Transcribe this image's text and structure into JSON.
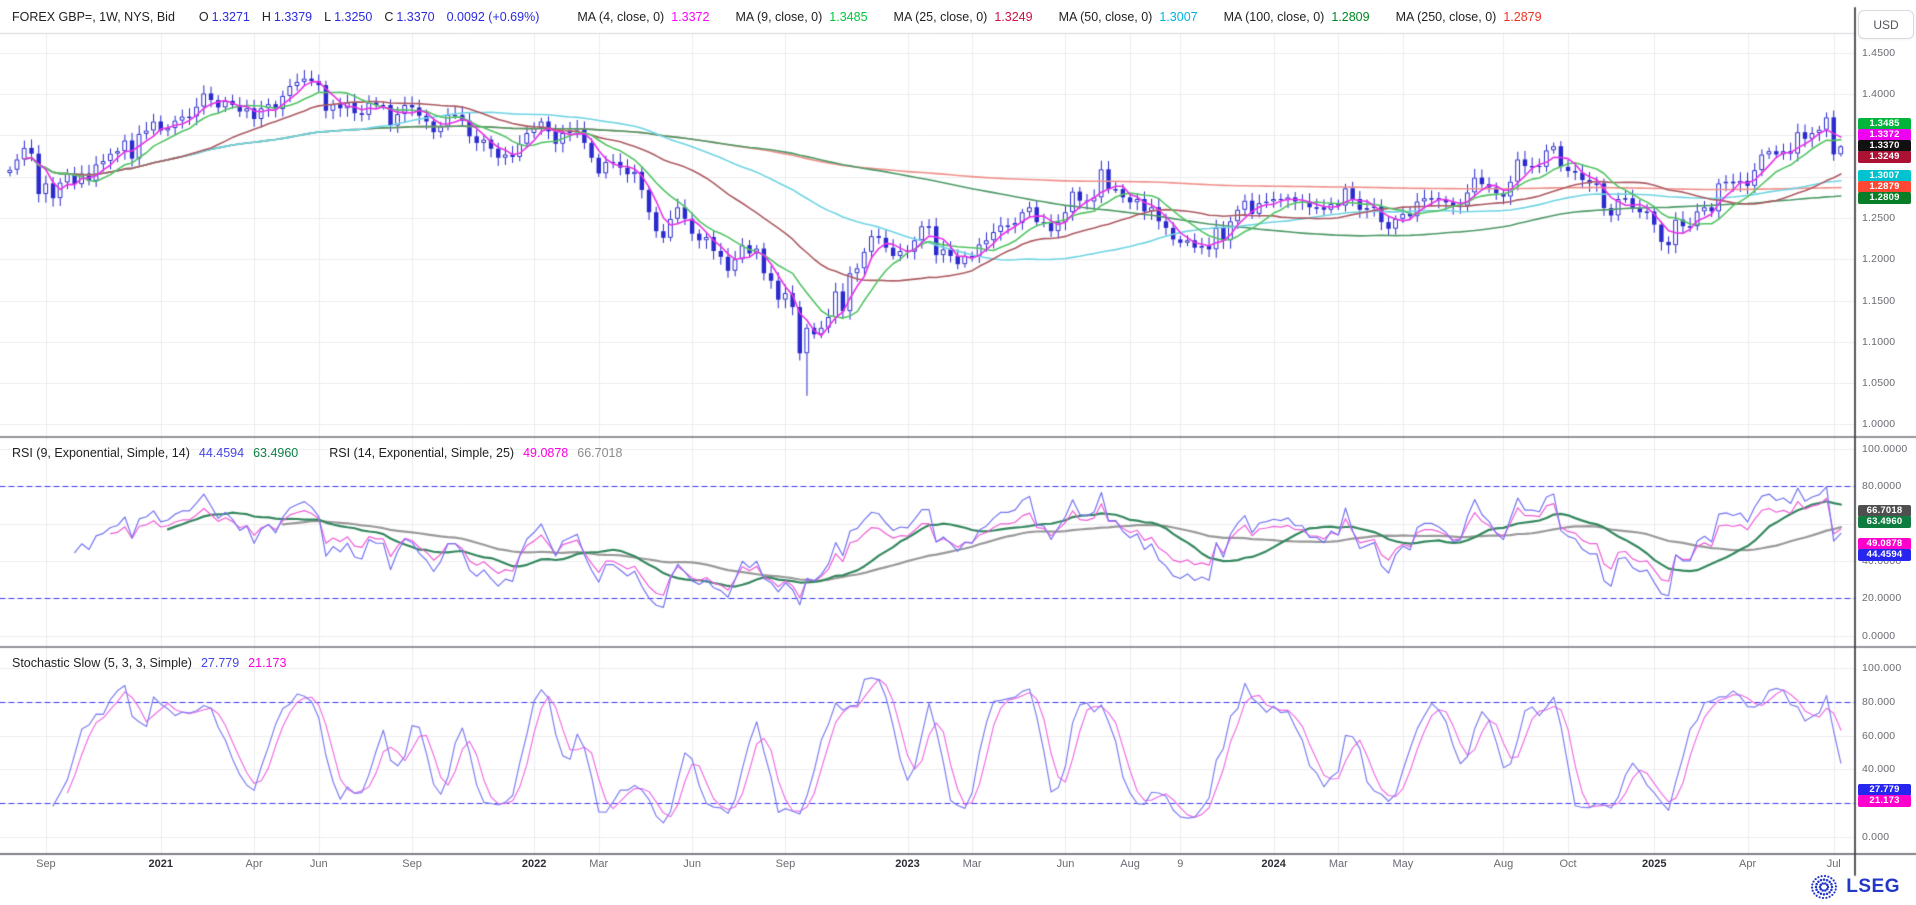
{
  "header": {
    "instrument": "FOREX GBP=, 1W, NYS, Bid",
    "ohlc": [
      {
        "k": "O",
        "v": "1.3271"
      },
      {
        "k": "H",
        "v": "1.3379"
      },
      {
        "k": "L",
        "v": "1.3250"
      },
      {
        "k": "C",
        "v": "1.3370"
      },
      {
        "k": "",
        "v": "0.0092 (+0.69%)"
      }
    ],
    "ma_legend": [
      {
        "label": "MA (4, close, 0)",
        "value": "1.3372",
        "color": "#ff00ff"
      },
      {
        "label": "MA (9, close, 0)",
        "value": "1.3485",
        "color": "#00c93c"
      },
      {
        "label": "MA (25, close, 0)",
        "value": "1.3249",
        "color": "#cc1144"
      },
      {
        "label": "MA (50, close, 0)",
        "value": "1.3007",
        "color": "#00b5e0"
      },
      {
        "label": "MA (100, close, 0)",
        "value": "1.2809",
        "color": "#008822"
      },
      {
        "label": "MA (250, close, 0)",
        "value": "1.2879",
        "color": "#ee3322"
      }
    ],
    "currency_button": "USD"
  },
  "main_panel": {
    "y_axis_labels": [
      {
        "text": "1.4500",
        "value": 1.45
      },
      {
        "text": "1.4000",
        "value": 1.4
      },
      {
        "text": "1.3500",
        "value": 1.35
      },
      {
        "text": "1.3000",
        "value": 1.3
      },
      {
        "text": "1.2500",
        "value": 1.25
      },
      {
        "text": "1.2000",
        "value": 1.2
      },
      {
        "text": "1.1500",
        "value": 1.15
      },
      {
        "text": "1.1000",
        "value": 1.1
      },
      {
        "text": "1.0500",
        "value": 1.05
      },
      {
        "text": "1.0000",
        "value": 1.0
      }
    ],
    "price_labels": [
      {
        "text": "1.3485",
        "value": 1.3485,
        "bg": "#00b53a"
      },
      {
        "text": "1.3372",
        "value": 1.3372,
        "bg": "#f000f0"
      },
      {
        "text": "1.3370",
        "value": 1.337,
        "bg": "#111111",
        "current": true
      },
      {
        "text": "1.3249",
        "value": 1.3249,
        "bg": "#aa1133"
      },
      {
        "text": "1.3007",
        "value": 1.3007,
        "bg": "#00c3cf"
      },
      {
        "text": "1.2879",
        "value": 1.2879,
        "bg": "#ff4733"
      },
      {
        "text": "1.2809",
        "value": 1.2809,
        "bg": "#0a7d28"
      }
    ]
  },
  "rsi_panel": {
    "legend": [
      {
        "label": "RSI (9, Exponential, Simple, 14)",
        "values": [
          {
            "text": "44.4594",
            "color": "#4646e8"
          },
          {
            "text": "63.4960",
            "color": "#0e8048"
          }
        ]
      },
      {
        "label": "RSI (14, Exponential, Simple, 25)",
        "values": [
          {
            "text": "49.0878",
            "color": "#ff00e0"
          },
          {
            "text": "66.7018",
            "color": "#8c8c8c"
          }
        ]
      }
    ],
    "y_axis_labels": [
      {
        "text": "100.0000",
        "value": 100
      },
      {
        "text": "80.0000",
        "value": 80
      },
      {
        "text": "60.0000",
        "value": 60
      },
      {
        "text": "40.0000",
        "value": 40
      },
      {
        "text": "20.0000",
        "value": 20
      },
      {
        "text": "0.0000",
        "value": 0
      }
    ],
    "value_labels": [
      {
        "text": "66.7018",
        "value": 66.7018,
        "bg": "#4f4f4f"
      },
      {
        "text": "63.4960",
        "value": 63.496,
        "bg": "#0e7d3f"
      },
      {
        "text": "49.0878",
        "value": 49.0878,
        "bg": "#ff00cc"
      },
      {
        "text": "44.4594",
        "value": 44.4594,
        "bg": "#2626ee"
      }
    ]
  },
  "stoch_panel": {
    "legend": [
      {
        "label": "Stochastic Slow (5, 3, 3, Simple)",
        "values": [
          {
            "text": "27.779",
            "color": "#4646e8"
          },
          {
            "text": "21.173",
            "color": "#ff00e0"
          }
        ]
      }
    ],
    "y_axis_labels": [
      {
        "text": "100.000",
        "value": 100
      },
      {
        "text": "80.000",
        "value": 80
      },
      {
        "text": "60.000",
        "value": 60
      },
      {
        "text": "40.000",
        "value": 40
      },
      {
        "text": "20.000",
        "value": 20
      },
      {
        "text": "0.000",
        "value": 0
      }
    ],
    "value_labels": [
      {
        "text": "27.779",
        "value": 27.779,
        "bg": "#2626ee"
      },
      {
        "text": "21.173",
        "value": 21.173,
        "bg": "#ff00cc"
      }
    ]
  },
  "x_axis": {
    "ticks": [
      {
        "label": "Sep",
        "week": 5,
        "bold": false
      },
      {
        "label": "2021",
        "week": 21,
        "bold": true
      },
      {
        "label": "Apr",
        "week": 34,
        "bold": false
      },
      {
        "label": "Jun",
        "week": 43,
        "bold": false
      },
      {
        "label": "Sep",
        "week": 56,
        "bold": false
      },
      {
        "label": "2022",
        "week": 73,
        "bold": true
      },
      {
        "label": "Mar",
        "week": 82,
        "bold": false
      },
      {
        "label": "Jun",
        "week": 95,
        "bold": false
      },
      {
        "label": "Sep",
        "week": 108,
        "bold": false
      },
      {
        "label": "2023",
        "week": 125,
        "bold": true
      },
      {
        "label": "Mar",
        "week": 134,
        "bold": false
      },
      {
        "label": "Jun",
        "week": 147,
        "bold": false
      },
      {
        "label": "Aug",
        "week": 156,
        "bold": false
      },
      {
        "label": "9",
        "week": 163,
        "bold": false
      },
      {
        "label": "2024",
        "week": 176,
        "bold": true
      },
      {
        "label": "Mar",
        "week": 185,
        "bold": false
      },
      {
        "label": "May",
        "week": 194,
        "bold": false
      },
      {
        "label": "Aug",
        "week": 208,
        "bold": false
      },
      {
        "label": "Oct",
        "week": 217,
        "bold": false
      },
      {
        "label": "2025",
        "week": 229,
        "bold": true
      },
      {
        "label": "Apr",
        "week": 242,
        "bold": false
      },
      {
        "label": "Jul",
        "week": 254,
        "bold": false
      }
    ]
  },
  "branding": {
    "logo_text": "LSEG",
    "logo_color": "#2438c8"
  },
  "colors": {
    "ohlc_value": "#2b2bdb",
    "candle": "#2a2ace",
    "ma4": "#e832e8",
    "ma9": "#53c465",
    "ma25": "#ad5c63",
    "ma50": "#70d4e4",
    "ma100": "#4f9a68",
    "ma250": "#ef918c",
    "rsi9": "#7575f2",
    "rsi9_signal": "#35885f",
    "rsi14": "#ef5fd8",
    "rsi14_signal": "#9a9a9a",
    "stoch_k": "#7f7ff0",
    "stoch_d": "#ef72e4",
    "dashed_level": "#3b3bf0",
    "grid": "#ededf1",
    "divider": "#6e6e78",
    "axis_line": "#44444c"
  },
  "chart_data": [
    {
      "type": "candlestick",
      "title": "FOREX GBP=, 1W, NYS, Bid",
      "interval": "1W",
      "unit": "USD",
      "ylim": [
        0.985,
        1.478
      ],
      "y_ticks": [
        1.45,
        1.4,
        1.35,
        1.3,
        1.25,
        1.2,
        1.15,
        1.1,
        1.05,
        1.0
      ],
      "overlays": [
        "MA(4)",
        "MA(9)",
        "MA(25)",
        "MA(50)",
        "MA(100)",
        "MA(250)"
      ],
      "overlay_last_values": {
        "MA4": 1.3372,
        "MA9": 1.3485,
        "MA25": 1.3249,
        "MA50": 1.3007,
        "MA100": 1.2809,
        "MA250": 1.2879
      },
      "closes_are_approximate": true,
      "weekly_closes": [
        1.3085,
        1.321,
        1.335,
        1.328,
        1.279,
        1.292,
        1.274,
        1.293,
        1.304,
        1.291,
        1.304,
        1.295,
        1.315,
        1.319,
        1.328,
        1.331,
        1.344,
        1.322,
        1.352,
        1.356,
        1.367,
        1.356,
        1.359,
        1.368,
        1.373,
        1.373,
        1.385,
        1.401,
        1.393,
        1.384,
        1.392,
        1.387,
        1.379,
        1.383,
        1.37,
        1.383,
        1.388,
        1.382,
        1.398,
        1.41,
        1.415,
        1.419,
        1.416,
        1.411,
        1.38,
        1.388,
        1.383,
        1.39,
        1.377,
        1.375,
        1.39,
        1.387,
        1.387,
        1.362,
        1.376,
        1.387,
        1.384,
        1.374,
        1.367,
        1.354,
        1.361,
        1.375,
        1.375,
        1.368,
        1.349,
        1.341,
        1.345,
        1.334,
        1.323,
        1.327,
        1.324,
        1.34,
        1.353,
        1.359,
        1.367,
        1.355,
        1.34,
        1.353,
        1.356,
        1.359,
        1.341,
        1.323,
        1.304,
        1.318,
        1.318,
        1.311,
        1.303,
        1.306,
        1.284,
        1.257,
        1.234,
        1.226,
        1.249,
        1.263,
        1.249,
        1.231,
        1.223,
        1.227,
        1.21,
        1.203,
        1.186,
        1.2,
        1.217,
        1.207,
        1.213,
        1.183,
        1.174,
        1.151,
        1.159,
        1.142,
        1.086,
        1.117,
        1.109,
        1.117,
        1.13,
        1.161,
        1.137,
        1.183,
        1.189,
        1.209,
        1.228,
        1.226,
        1.214,
        1.204,
        1.21,
        1.209,
        1.223,
        1.24,
        1.24,
        1.205,
        1.212,
        1.204,
        1.194,
        1.204,
        1.203,
        1.218,
        1.223,
        1.233,
        1.241,
        1.241,
        1.244,
        1.257,
        1.263,
        1.245,
        1.244,
        1.234,
        1.245,
        1.257,
        1.282,
        1.271,
        1.27,
        1.275,
        1.309,
        1.285,
        1.285,
        1.275,
        1.269,
        1.273,
        1.258,
        1.263,
        1.246,
        1.238,
        1.224,
        1.22,
        1.223,
        1.214,
        1.216,
        1.212,
        1.238,
        1.223,
        1.246,
        1.26,
        1.271,
        1.255,
        1.268,
        1.27,
        1.273,
        1.272,
        1.275,
        1.27,
        1.27,
        1.263,
        1.263,
        1.26,
        1.267,
        1.265,
        1.286,
        1.273,
        1.26,
        1.262,
        1.264,
        1.245,
        1.237,
        1.249,
        1.255,
        1.252,
        1.27,
        1.274,
        1.274,
        1.272,
        1.269,
        1.264,
        1.265,
        1.281,
        1.299,
        1.291,
        1.287,
        1.28,
        1.276,
        1.294,
        1.321,
        1.313,
        1.313,
        1.312,
        1.332,
        1.337,
        1.312,
        1.307,
        1.305,
        1.296,
        1.292,
        1.292,
        1.262,
        1.253,
        1.273,
        1.274,
        1.262,
        1.257,
        1.258,
        1.242,
        1.221,
        1.217,
        1.248,
        1.24,
        1.24,
        1.258,
        1.263,
        1.258,
        1.292,
        1.294,
        1.292,
        1.295,
        1.289,
        1.308,
        1.327,
        1.331,
        1.327,
        1.331,
        1.328,
        1.354,
        1.346,
        1.353,
        1.357,
        1.372,
        1.3271,
        1.337
      ],
      "flash_crash": {
        "index": 111,
        "low": 1.035
      },
      "last_candle": {
        "open": 1.3271,
        "high": 1.3379,
        "low": 1.325,
        "close": 1.337
      }
    },
    {
      "type": "line",
      "title": "RSI (9, Exponential, Simple, 14) / RSI (14, Exponential, Simple, 25)",
      "ylim": [
        0,
        100
      ],
      "y_ticks": [
        100,
        80,
        60,
        40,
        20,
        0
      ],
      "dashed_levels": [
        80,
        20
      ],
      "series": [
        {
          "name": "RSI(9)",
          "last": 44.4594
        },
        {
          "name": "RSI(9) avg(14)",
          "last": 63.496
        },
        {
          "name": "RSI(14)",
          "last": 49.0878
        },
        {
          "name": "RSI(14) avg(25)",
          "last": 66.7018
        }
      ],
      "derived_from": "weekly_closes"
    },
    {
      "type": "line",
      "title": "Stochastic Slow (5, 3, 3, Simple)",
      "ylim": [
        0,
        100
      ],
      "y_ticks": [
        100,
        80,
        60,
        40,
        20,
        0
      ],
      "dashed_levels": [
        80,
        20
      ],
      "series": [
        {
          "name": "%K",
          "last": 27.779
        },
        {
          "name": "%D",
          "last": 21.173
        }
      ],
      "derived_from": "weekly_closes"
    }
  ]
}
